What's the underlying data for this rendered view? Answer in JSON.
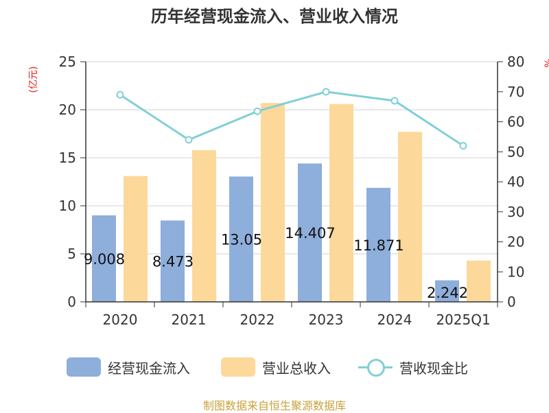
{
  "title": "历年经营现金流入、营业收入情况",
  "ylabel_left": "(亿元)",
  "ylabel_right": "%",
  "source": "制图数据来自恒生聚源数据库",
  "chart_data": {
    "type": "bar",
    "title": "历年经营现金流入、营业收入情况",
    "categories": [
      "2020",
      "2021",
      "2022",
      "2023",
      "2024",
      "2025Q1"
    ],
    "ylabel": "(亿元)",
    "ylim": [
      0,
      25
    ],
    "yticks": [
      "0",
      "5",
      "10",
      "15",
      "20",
      "25"
    ],
    "y2label": "%",
    "y2lim": [
      0,
      80
    ],
    "y2ticks": [
      "0",
      "10",
      "20",
      "30",
      "40",
      "50",
      "60",
      "70",
      "80"
    ],
    "grid": true,
    "legend_position": "bottom",
    "series": [
      {
        "name": "经营现金流入",
        "type": "bar",
        "axis": "left",
        "color": "#8eaedb",
        "values": [
          9.008,
          8.473,
          13.05,
          14.407,
          11.871,
          2.242
        ],
        "data_labels": [
          "9.008",
          "8.473",
          "13.05",
          "14.407",
          "11.871",
          "2.242"
        ]
      },
      {
        "name": "营业总收入",
        "type": "bar",
        "axis": "left",
        "color": "#fdd89b",
        "values": [
          13.1,
          15.8,
          20.7,
          20.6,
          17.7,
          4.3
        ]
      },
      {
        "name": "营收现金比",
        "type": "line",
        "axis": "right",
        "color": "#80d0d5",
        "values": [
          69,
          54,
          63.5,
          70,
          67,
          52
        ]
      }
    ]
  }
}
